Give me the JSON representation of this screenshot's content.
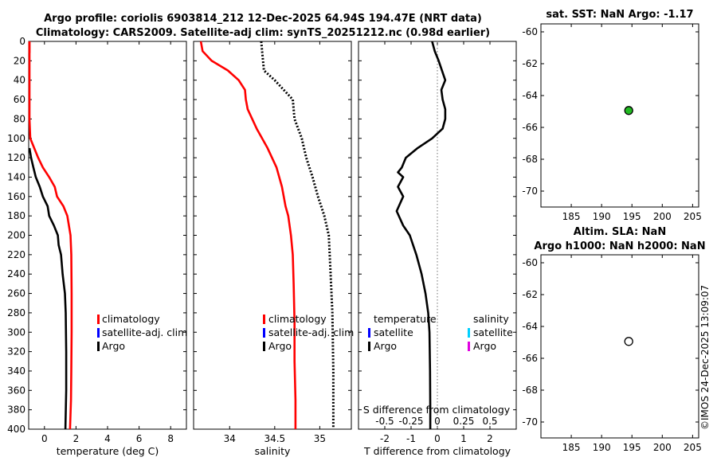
{
  "titles": {
    "main_line1": "Argo profile: coriolis 6903814_212 12-Dec-2025 64.94S 194.47E (NRT data)",
    "main_line2": "Climatology: CARS2009. Satellite-adj clim: synTS_20251212.nc (0.98d earlier)",
    "map1": "sat. SST: NaN Argo: -1.17",
    "map2_line1": "Altim. SLA: NaN",
    "map2_line2": "Argo h1000: NaN h2000: NaN",
    "side_stamp": "©IMOS 24-Dec-2025 13:09:07"
  },
  "legends": {
    "temp": [
      "climatology",
      "satellite-adj. clim",
      "Argo"
    ],
    "sal": [
      "climatology",
      "satellite-adj. clim",
      "Argo"
    ],
    "diff_left_header": "temperature",
    "diff_left": [
      "satellite",
      "Argo"
    ],
    "diff_right_header": "salinity",
    "diff_right": [
      "satellite",
      "Argo"
    ]
  },
  "colors": {
    "climatology": "#ff0000",
    "satellite_clim": "#0000ff",
    "argo": "#000000",
    "diff_t_sat": "#0000ff",
    "diff_t_argo": "#000000",
    "diff_s_sat": "#00d0ff",
    "diff_s_argo": "#e000e0",
    "marker_green": "#22bb22",
    "zero_line": "#888888"
  },
  "chart_data": [
    {
      "type": "line",
      "name": "temperature",
      "xlabel": "temperature (deg C)",
      "ylabel": "",
      "xlim": [
        -1,
        9
      ],
      "ylim": [
        400,
        0
      ],
      "xticks": [
        0,
        2,
        4,
        6,
        8
      ],
      "yticks": [
        0,
        20,
        40,
        60,
        80,
        100,
        120,
        140,
        160,
        180,
        200,
        220,
        240,
        260,
        280,
        300,
        320,
        340,
        360,
        380,
        400
      ],
      "series": [
        {
          "name": "climatology",
          "x": [
            -0.95,
            -0.95,
            -0.95,
            -0.95,
            -0.9,
            -0.65,
            -0.4,
            -0.1,
            0.3,
            0.65,
            0.8,
            1.2,
            1.45,
            1.55,
            1.65,
            1.7,
            1.72,
            1.72,
            1.7,
            1.68,
            1.62
          ],
          "y": [
            0,
            20,
            40,
            80,
            100,
            110,
            120,
            130,
            140,
            150,
            160,
            170,
            180,
            190,
            200,
            220,
            260,
            300,
            340,
            370,
            400
          ]
        },
        {
          "name": "Argo",
          "x": [
            -0.95,
            -0.85,
            -0.7,
            -0.55,
            -0.3,
            -0.1,
            0.2,
            0.3,
            0.6,
            0.85,
            0.9,
            1.05,
            1.15,
            1.3,
            1.35,
            1.38,
            1.38,
            1.33
          ],
          "y": [
            110,
            120,
            130,
            140,
            150,
            160,
            170,
            180,
            190,
            200,
            210,
            220,
            240,
            260,
            280,
            320,
            360,
            400
          ]
        }
      ]
    },
    {
      "type": "line",
      "name": "salinity",
      "xlabel": "salinity",
      "ylabel": "",
      "xlim": [
        33.6,
        35.35
      ],
      "ylim": [
        400,
        0
      ],
      "xticks": [
        34,
        34.5,
        35
      ],
      "series": [
        {
          "name": "climatology",
          "x": [
            33.68,
            33.7,
            33.8,
            33.98,
            34.1,
            34.17,
            34.18,
            34.2,
            34.3,
            34.42,
            34.52,
            34.58,
            34.62,
            34.65,
            34.68,
            34.7,
            34.71,
            34.72,
            34.72,
            34.73,
            34.73
          ],
          "y": [
            0,
            10,
            20,
            30,
            40,
            50,
            60,
            70,
            90,
            110,
            130,
            150,
            170,
            180,
            200,
            220,
            250,
            290,
            330,
            370,
            400
          ]
        },
        {
          "name": "Argo",
          "x": [
            34.35,
            34.36,
            34.38,
            34.5,
            34.7,
            34.72,
            34.8,
            34.85,
            34.92,
            34.98,
            35.05,
            35.1,
            35.12,
            35.14,
            35.15,
            35.15
          ],
          "y": [
            0,
            10,
            30,
            40,
            60,
            80,
            100,
            120,
            140,
            160,
            180,
            200,
            240,
            280,
            340,
            400
          ]
        }
      ]
    },
    {
      "type": "line",
      "name": "difference",
      "xlabel": "T difference from climatology",
      "x2label": "S difference from climatology",
      "ylabel": "",
      "xlim": [
        -3,
        3
      ],
      "ylim": [
        400,
        0
      ],
      "xticks": [
        -2,
        -1,
        0,
        1,
        2
      ],
      "x2ticks": [
        "-0.5",
        "-0.25",
        "0",
        "0.25",
        "0.5"
      ],
      "series": [
        {
          "name": "Argo",
          "x": [
            -0.2,
            -0.1,
            0.05,
            0.3,
            0.15,
            0.2,
            0.3,
            0.3,
            0.2,
            -0.2,
            -0.75,
            -1.2,
            -1.35,
            -1.5,
            -1.3,
            -1.5,
            -1.3,
            -1.55,
            -1.3,
            -1.05,
            -0.8,
            -0.6,
            -0.45,
            -0.35,
            -0.3,
            -0.28,
            -0.27,
            -0.27
          ],
          "y": [
            0,
            10,
            20,
            40,
            50,
            60,
            70,
            80,
            90,
            100,
            110,
            120,
            130,
            135,
            140,
            150,
            160,
            175,
            190,
            200,
            220,
            240,
            260,
            280,
            300,
            340,
            380,
            400
          ]
        }
      ]
    },
    {
      "type": "scatter",
      "name": "map-sst",
      "xlim": [
        180,
        206
      ],
      "ylim": [
        -71,
        -59.5
      ],
      "xticks": [
        185,
        190,
        195,
        200,
        205
      ],
      "yticks": [
        -60,
        -62,
        -64,
        -66,
        -68,
        -70
      ],
      "points": [
        {
          "x": 194.47,
          "y": -64.94
        }
      ]
    },
    {
      "type": "scatter",
      "name": "map-sla",
      "xlim": [
        180,
        206
      ],
      "ylim": [
        -71,
        -59.5
      ],
      "xticks": [
        185,
        190,
        195,
        200,
        205
      ],
      "yticks": [
        -60,
        -62,
        -64,
        -66,
        -68,
        -70
      ],
      "points": [
        {
          "x": 194.47,
          "y": -64.94
        }
      ]
    }
  ]
}
